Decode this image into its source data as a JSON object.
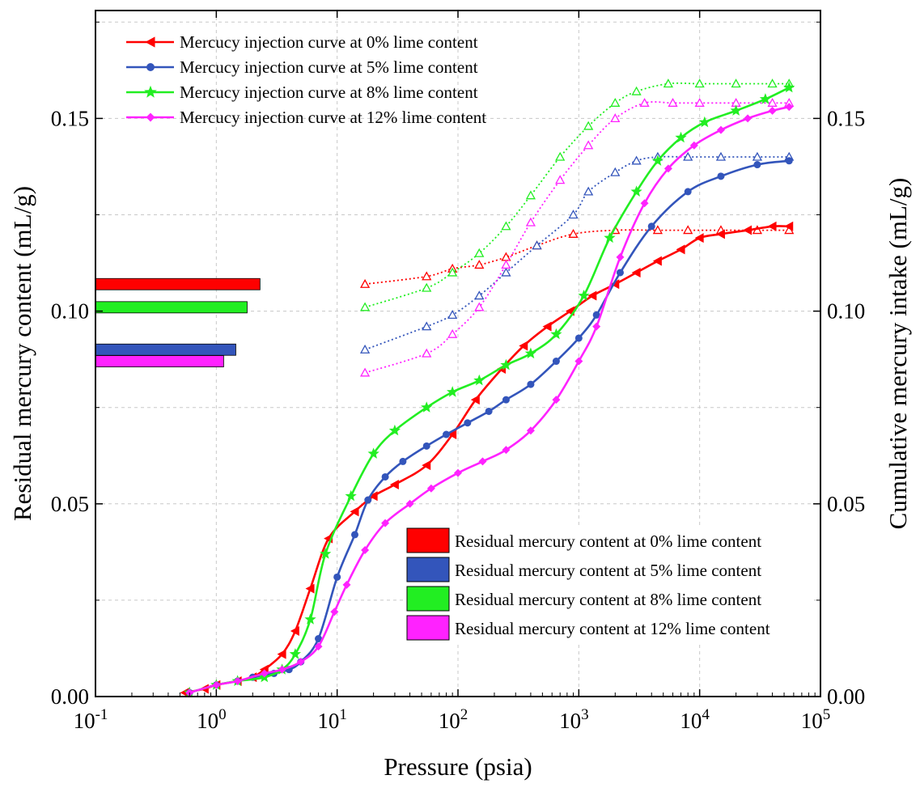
{
  "chart_data": {
    "type": "line",
    "xlabel": "Pressure (psia)",
    "ylabel": "Residual mercury content (mL/g)",
    "y2label": "Cumulative mercury intake (mL/g)",
    "xscale": "log",
    "xlim": [
      0.1,
      100000
    ],
    "ylim": [
      0,
      0.178
    ],
    "y2lim": [
      0,
      0.178
    ],
    "grid": true,
    "x_ticks": [
      {
        "base": "10",
        "exp": "-1"
      },
      {
        "base": "10",
        "exp": "0"
      },
      {
        "base": "10",
        "exp": "1"
      },
      {
        "base": "10",
        "exp": "2"
      },
      {
        "base": "10",
        "exp": "3"
      },
      {
        "base": "10",
        "exp": "4"
      },
      {
        "base": "10",
        "exp": "5"
      }
    ],
    "y_ticks": [
      "0.00",
      "0.05",
      "0.10",
      "0.15"
    ],
    "y_tick_values": [
      0,
      0.05,
      0.1,
      0.15
    ],
    "injection_legend": [
      "Mercucy injection curve  at  0%  lime content",
      "Mercucy injection curve  at  5%  lime content",
      "Mercucy injection curve  at  8%  lime content",
      "Mercucy injection curve  at 12% lime content"
    ],
    "residual_legend": [
      "Residual mercury content at  0%  lime content",
      "Residual mercury content at  5%  lime content",
      "Residual mercury content at  8%  lime content",
      "Residual mercury content at 12% lime content"
    ],
    "colors": [
      "#ff0000",
      "#3355bb",
      "#22ee22",
      "#ff22ff"
    ],
    "injection_series": [
      {
        "name": "0% lime",
        "marker": "triangle-left",
        "x": [
          0.55,
          0.8,
          1.0,
          1.5,
          2.0,
          2.5,
          3.5,
          4.5,
          6.0,
          8.5,
          14,
          20,
          30,
          55,
          90,
          140,
          230,
          350,
          550,
          850,
          1300,
          2000,
          3000,
          4500,
          7000,
          10000,
          15000,
          25000,
          40000,
          55000
        ],
        "y": [
          0.001,
          0.002,
          0.003,
          0.004,
          0.005,
          0.007,
          0.011,
          0.017,
          0.028,
          0.041,
          0.048,
          0.052,
          0.055,
          0.06,
          0.068,
          0.077,
          0.085,
          0.091,
          0.096,
          0.1,
          0.104,
          0.107,
          0.11,
          0.113,
          0.116,
          0.119,
          0.12,
          0.121,
          0.122,
          0.122
        ]
      },
      {
        "name": "5% lime",
        "marker": "circle",
        "x": [
          0.6,
          1.0,
          1.5,
          2.0,
          3.0,
          4.0,
          5.0,
          7.0,
          10,
          14,
          18,
          25,
          35,
          55,
          80,
          120,
          180,
          250,
          400,
          650,
          1000,
          1400,
          2200,
          4000,
          8000,
          15000,
          30000,
          55000
        ],
        "y": [
          0.001,
          0.003,
          0.004,
          0.005,
          0.006,
          0.007,
          0.009,
          0.015,
          0.031,
          0.042,
          0.051,
          0.057,
          0.061,
          0.065,
          0.068,
          0.071,
          0.074,
          0.077,
          0.081,
          0.087,
          0.093,
          0.099,
          0.11,
          0.122,
          0.131,
          0.135,
          0.138,
          0.139
        ]
      },
      {
        "name": "8% lime",
        "marker": "star",
        "x": [
          0.6,
          1.0,
          1.5,
          2.5,
          3.5,
          4.5,
          6.0,
          8.0,
          13,
          20,
          30,
          55,
          90,
          150,
          250,
          400,
          650,
          1100,
          1800,
          3000,
          4500,
          7000,
          11000,
          20000,
          35000,
          55000
        ],
        "y": [
          0.001,
          0.003,
          0.004,
          0.005,
          0.007,
          0.011,
          0.02,
          0.037,
          0.052,
          0.063,
          0.069,
          0.075,
          0.079,
          0.082,
          0.086,
          0.089,
          0.094,
          0.104,
          0.119,
          0.131,
          0.139,
          0.145,
          0.149,
          0.152,
          0.155,
          0.158
        ]
      },
      {
        "name": "12% lime",
        "marker": "diamond",
        "x": [
          0.6,
          1.0,
          1.5,
          2.5,
          3.5,
          5.0,
          7.0,
          9.5,
          12,
          17,
          25,
          40,
          60,
          100,
          160,
          250,
          400,
          650,
          1000,
          1400,
          2200,
          3500,
          5500,
          9000,
          15000,
          25000,
          40000,
          55000
        ],
        "y": [
          0.001,
          0.003,
          0.004,
          0.006,
          0.007,
          0.009,
          0.013,
          0.022,
          0.029,
          0.038,
          0.045,
          0.05,
          0.054,
          0.058,
          0.061,
          0.064,
          0.069,
          0.077,
          0.087,
          0.096,
          0.114,
          0.128,
          0.137,
          0.143,
          0.147,
          0.15,
          0.152,
          0.153
        ]
      }
    ],
    "cumulative_series": [
      {
        "name": "0% lime",
        "x": [
          17,
          55,
          90,
          150,
          250,
          450,
          900,
          2000,
          4500,
          8000,
          15000,
          30000,
          55000
        ],
        "y": [
          0.107,
          0.109,
          0.111,
          0.112,
          0.114,
          0.117,
          0.12,
          0.121,
          0.121,
          0.121,
          0.121,
          0.121,
          0.121
        ]
      },
      {
        "name": "5% lime",
        "x": [
          17,
          55,
          90,
          150,
          250,
          450,
          900,
          1200,
          2000,
          3000,
          4500,
          8000,
          15000,
          30000,
          55000
        ],
        "y": [
          0.09,
          0.096,
          0.099,
          0.104,
          0.11,
          0.117,
          0.125,
          0.131,
          0.136,
          0.139,
          0.14,
          0.14,
          0.14,
          0.14,
          0.14
        ]
      },
      {
        "name": "8% lime",
        "x": [
          17,
          55,
          90,
          150,
          250,
          400,
          700,
          1200,
          2000,
          3000,
          5500,
          10000,
          20000,
          40000,
          55000
        ],
        "y": [
          0.101,
          0.106,
          0.11,
          0.115,
          0.122,
          0.13,
          0.14,
          0.148,
          0.154,
          0.157,
          0.159,
          0.159,
          0.159,
          0.159,
          0.159
        ]
      },
      {
        "name": "12% lime",
        "x": [
          17,
          55,
          90,
          150,
          250,
          400,
          700,
          1200,
          2000,
          3500,
          6000,
          10000,
          20000,
          40000,
          55000
        ],
        "y": [
          0.084,
          0.089,
          0.094,
          0.101,
          0.112,
          0.123,
          0.134,
          0.143,
          0.15,
          0.154,
          0.154,
          0.154,
          0.154,
          0.154,
          0.154
        ]
      }
    ],
    "residual_bars": [
      {
        "name": "0% lime",
        "value": 2.3,
        "y_center": 0.107
      },
      {
        "name": "8% lime",
        "value": 1.8,
        "y_center": 0.101
      },
      {
        "name": "5% lime",
        "value": 1.45,
        "y_center": 0.09
      },
      {
        "name": "12% lime",
        "value": 1.15,
        "y_center": 0.087
      }
    ]
  }
}
